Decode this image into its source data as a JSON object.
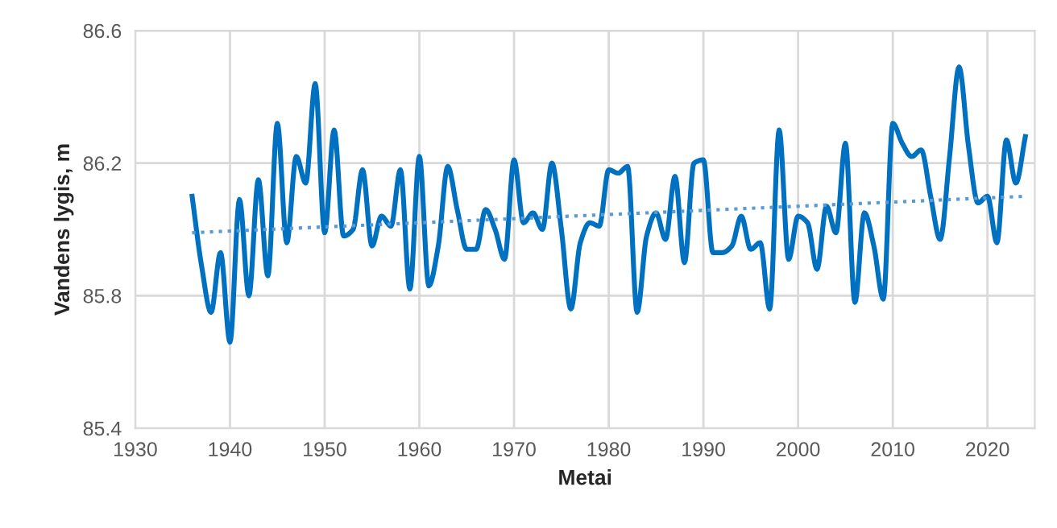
{
  "chart_data": {
    "type": "line",
    "xlabel": "Metai",
    "ylabel": "Vandens lygis, m",
    "xlim": [
      1930,
      2025
    ],
    "xticks": [
      1930,
      1940,
      1950,
      1960,
      1970,
      1980,
      1990,
      2000,
      2010,
      2020
    ],
    "ylim": [
      85.4,
      86.6
    ],
    "yticks": [
      85.4,
      85.8,
      86.2,
      86.6
    ],
    "grid": true,
    "legend": false,
    "marker": "none",
    "series": [
      {
        "color": "#0070c0",
        "line_style": "solid",
        "x": [
          1936,
          1937,
          1938,
          1939,
          1940,
          1941,
          1942,
          1943,
          1944,
          1945,
          1946,
          1947,
          1948,
          1949,
          1950,
          1951,
          1952,
          1953,
          1954,
          1955,
          1956,
          1957,
          1958,
          1959,
          1960,
          1961,
          1962,
          1963,
          1964,
          1965,
          1966,
          1967,
          1968,
          1969,
          1970,
          1971,
          1972,
          1973,
          1974,
          1975,
          1976,
          1977,
          1978,
          1979,
          1980,
          1981,
          1982,
          1983,
          1984,
          1985,
          1986,
          1987,
          1988,
          1989,
          1990,
          1991,
          1992,
          1993,
          1994,
          1995,
          1996,
          1997,
          1998,
          1999,
          2000,
          2001,
          2002,
          2003,
          2004,
          2005,
          2006,
          2007,
          2008,
          2009,
          2010,
          2011,
          2012,
          2013,
          2014,
          2015,
          2016,
          2017,
          2018,
          2019,
          2020,
          2021,
          2022,
          2023,
          2024
        ],
        "values": [
          86.1,
          85.89,
          85.75,
          85.93,
          85.66,
          86.09,
          85.8,
          86.15,
          85.86,
          86.32,
          85.96,
          86.22,
          86.14,
          86.44,
          85.99,
          86.3,
          85.98,
          86.0,
          86.18,
          85.95,
          86.04,
          86.01,
          86.18,
          85.82,
          86.22,
          85.83,
          85.95,
          86.19,
          86.06,
          85.94,
          85.94,
          86.06,
          86.0,
          85.91,
          86.21,
          86.02,
          86.05,
          86.0,
          86.2,
          86.0,
          85.76,
          85.96,
          86.02,
          86.01,
          86.18,
          86.17,
          86.19,
          85.75,
          85.98,
          86.05,
          85.97,
          86.16,
          85.9,
          86.2,
          86.21,
          85.93,
          85.93,
          85.95,
          86.04,
          85.94,
          85.96,
          85.76,
          86.3,
          85.91,
          86.04,
          86.02,
          85.88,
          86.07,
          85.99,
          86.26,
          85.78,
          86.05,
          85.95,
          85.79,
          86.32,
          86.26,
          86.22,
          86.24,
          86.1,
          85.97,
          86.22,
          86.49,
          86.25,
          86.08,
          86.1,
          85.96,
          86.27,
          86.14,
          86.28
        ]
      },
      {
        "color": "#5b9bd5",
        "line_style": "dotted",
        "x": [
          1936,
          2024
        ],
        "values": [
          85.99,
          86.1
        ]
      }
    ]
  }
}
